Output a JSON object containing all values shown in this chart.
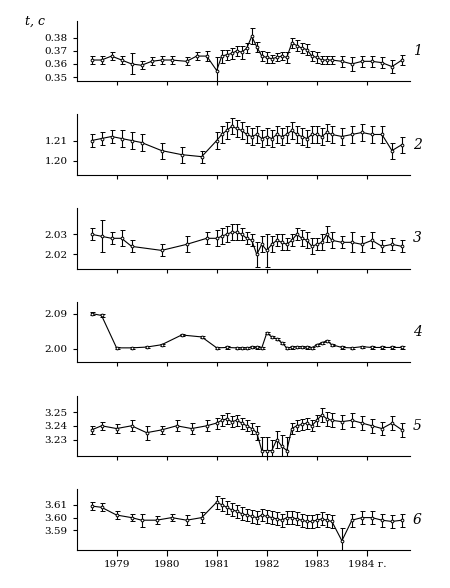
{
  "title_y": "t, c",
  "panels": [
    {
      "label": "1",
      "ylim": [
        0.347,
        0.393
      ],
      "yticks": [
        0.35,
        0.36,
        0.37,
        0.38
      ],
      "ytick_labels": [
        "0.35",
        "0.36",
        "0.37",
        "0.38"
      ]
    },
    {
      "label": "2",
      "ylim": [
        1.193,
        1.223
      ],
      "yticks": [
        1.2,
        1.21
      ],
      "ytick_labels": [
        "1.20",
        "1.21"
      ]
    },
    {
      "label": "3",
      "ylim": [
        2.013,
        2.043
      ],
      "yticks": [
        2.02,
        2.03
      ],
      "ytick_labels": [
        "2.02",
        "2.03"
      ]
    },
    {
      "label": "4",
      "ylim": [
        1.965,
        2.12
      ],
      "yticks": [
        2.0,
        2.09
      ],
      "ytick_labels": [
        "2.00",
        "2.09"
      ]
    },
    {
      "label": "5",
      "ylim": [
        3.218,
        3.262
      ],
      "yticks": [
        3.23,
        3.24,
        3.25
      ],
      "ytick_labels": [
        "3.23",
        "3.24",
        "3.25"
      ]
    },
    {
      "label": "6",
      "ylim": [
        3.575,
        3.622
      ],
      "yticks": [
        3.59,
        3.6,
        3.61
      ],
      "ytick_labels": [
        "3.59",
        "3.60",
        "3.61"
      ]
    }
  ],
  "xticks": [
    1979,
    1980,
    1981,
    1982,
    1983,
    1984
  ],
  "xticklabels": [
    "1979",
    "1980",
    "1981",
    "1982",
    "1983",
    "1984 г."
  ],
  "xlim": [
    1978.2,
    1984.85
  ],
  "line_color": "#000000",
  "marker_color": "#ffffff",
  "marker_edge_color": "#000000"
}
